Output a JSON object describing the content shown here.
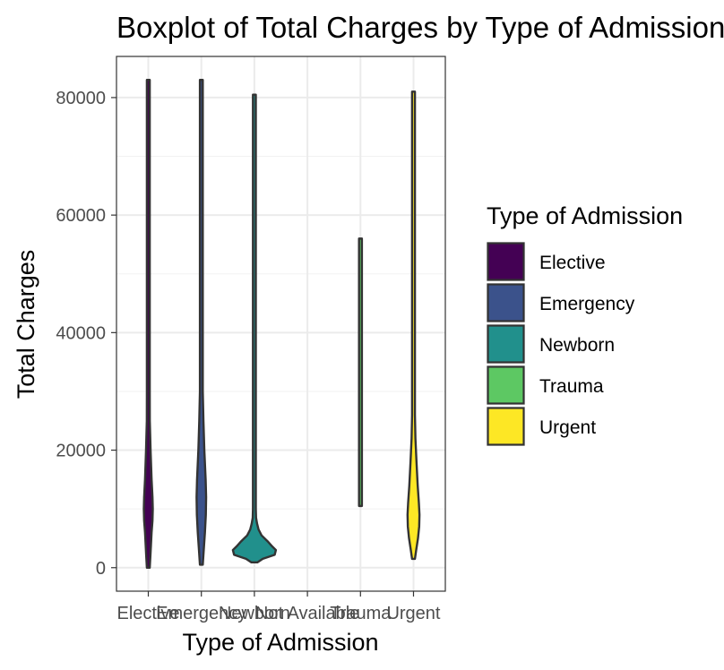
{
  "chart_data": {
    "type": "violin",
    "title": "Boxplot of Total Charges by Type of Admission",
    "xlabel": "Type of Admission",
    "ylabel": "Total Charges",
    "categories": [
      "Elective",
      "Emergency",
      "Newborn",
      "Not Available",
      "Trauma",
      "Urgent"
    ],
    "y_ticks": [
      0,
      20000,
      40000,
      60000,
      80000
    ],
    "ylim": [
      -4000,
      87000
    ],
    "grid": true,
    "legend_title": "Type of Admission",
    "legend_position": "right",
    "series": [
      {
        "name": "Elective",
        "color": "#440154",
        "min": 0,
        "max": 83000,
        "density": [
          [
            0,
            0.08
          ],
          [
            2000,
            0.35
          ],
          [
            4000,
            0.45
          ],
          [
            6000,
            0.55
          ],
          [
            8000,
            0.7
          ],
          [
            10000,
            0.75
          ],
          [
            12000,
            0.7
          ],
          [
            15000,
            0.55
          ],
          [
            20000,
            0.38
          ],
          [
            25000,
            0.25
          ],
          [
            30000,
            0.16
          ],
          [
            40000,
            0.08
          ],
          [
            50000,
            0.06
          ],
          [
            60000,
            0.05
          ],
          [
            70000,
            0.04
          ],
          [
            83000,
            0.03
          ]
        ]
      },
      {
        "name": "Emergency",
        "color": "#3B528B",
        "min": 500,
        "max": 83000,
        "density": [
          [
            500,
            0.08
          ],
          [
            3000,
            0.4
          ],
          [
            6000,
            0.6
          ],
          [
            9000,
            0.75
          ],
          [
            12000,
            0.8
          ],
          [
            15000,
            0.72
          ],
          [
            20000,
            0.5
          ],
          [
            25000,
            0.35
          ],
          [
            30000,
            0.2
          ],
          [
            40000,
            0.1
          ],
          [
            50000,
            0.07
          ],
          [
            60000,
            0.06
          ],
          [
            70000,
            0.05
          ],
          [
            83000,
            0.04
          ]
        ]
      },
      {
        "name": "Newborn",
        "color": "#21908C",
        "min": 900,
        "max": 80500,
        "density": [
          [
            900,
            0.5
          ],
          [
            1500,
            1.4
          ],
          [
            2200,
            3.4
          ],
          [
            3000,
            3.6
          ],
          [
            3600,
            3.0
          ],
          [
            4500,
            2.2
          ],
          [
            5500,
            1.2
          ],
          [
            6500,
            0.7
          ],
          [
            7500,
            0.45
          ],
          [
            8500,
            0.28
          ],
          [
            10000,
            0.18
          ],
          [
            15000,
            0.1
          ],
          [
            20000,
            0.07
          ],
          [
            30000,
            0.05
          ],
          [
            40000,
            0.04
          ],
          [
            50000,
            0.03
          ],
          [
            60000,
            0.03
          ],
          [
            70000,
            0.02
          ],
          [
            80500,
            0.02
          ]
        ]
      },
      {
        "name": "Trauma",
        "color": "#5DC863",
        "min": 10500,
        "max": 56000,
        "density": [
          [
            10500,
            0.2
          ],
          [
            20000,
            0.2
          ],
          [
            30000,
            0.2
          ],
          [
            40000,
            0.2
          ],
          [
            50000,
            0.2
          ],
          [
            56000,
            0.2
          ]
        ]
      },
      {
        "name": "Urgent",
        "color": "#FDE725",
        "min": 1500,
        "max": 81000,
        "density": [
          [
            1500,
            0.1
          ],
          [
            3000,
            0.45
          ],
          [
            5000,
            0.75
          ],
          [
            7000,
            0.95
          ],
          [
            9000,
            1.0
          ],
          [
            11000,
            0.9
          ],
          [
            14000,
            0.7
          ],
          [
            18000,
            0.5
          ],
          [
            22000,
            0.32
          ],
          [
            26000,
            0.2
          ],
          [
            30000,
            0.12
          ],
          [
            40000,
            0.06
          ],
          [
            50000,
            0.04
          ],
          [
            60000,
            0.03
          ],
          [
            70000,
            0.03
          ],
          [
            81000,
            0.02
          ]
        ]
      }
    ]
  }
}
